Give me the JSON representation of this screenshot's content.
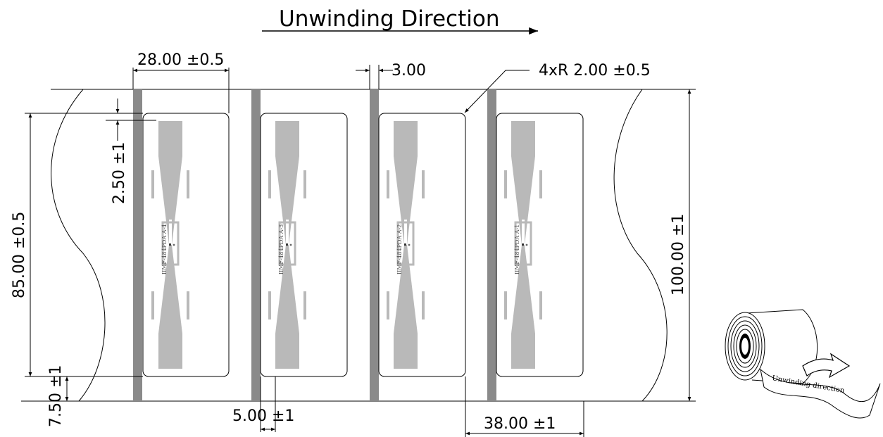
{
  "title": "Unwinding Direction",
  "dimensions": {
    "pitch_gap": "28.00 ±0.5",
    "liner_gap": "3.00",
    "corner_radius": "4xR 2.00 ±0.5",
    "top_margin": "2.50 ±1",
    "label_height": "85.00 ±0.5",
    "web_width": "100.00 ±1",
    "bottom_margin": "7.50 ±1",
    "label_gap": "5.00 ±1",
    "label_width": "38.00 ±1"
  },
  "labels": [
    {
      "code": "IIMF-484PDA  A-4"
    },
    {
      "code": "IIMF-484PDA  A-3"
    },
    {
      "code": "IIMF-484PDA  A-2"
    },
    {
      "code": "IIMF-484PDA  A-1"
    }
  ],
  "roll": {
    "text": "Unwinding direction"
  },
  "colors": {
    "antenna": "#b9b9b9",
    "sprocket_strip": "#8a8a8a",
    "line": "#000000"
  }
}
